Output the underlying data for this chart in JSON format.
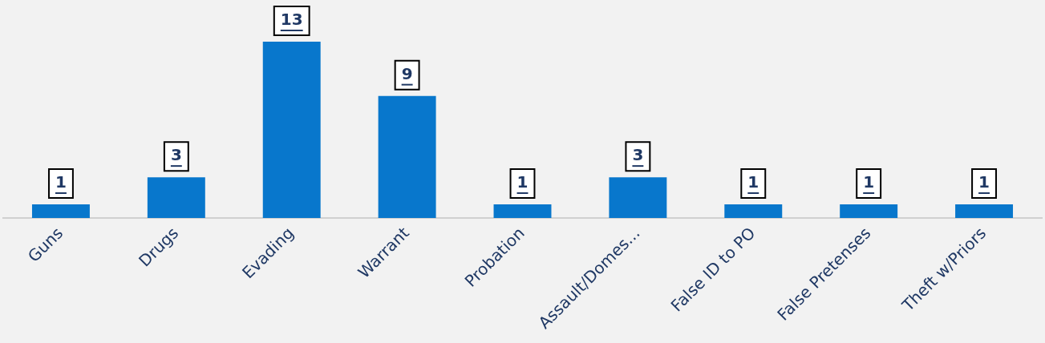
{
  "chart_data": {
    "type": "bar",
    "categories": [
      "Guns",
      "Drugs",
      "Evading",
      "Warrant",
      "Probation",
      "Assault/Domes...",
      "False ID to PO",
      "False Pretenses",
      "Theft w/Priors"
    ],
    "values": [
      1,
      3,
      13,
      9,
      1,
      3,
      1,
      1,
      1
    ],
    "color": "#0877cc",
    "ylim": [
      0,
      13
    ],
    "data_labels": true,
    "grid": false,
    "legend": false
  }
}
